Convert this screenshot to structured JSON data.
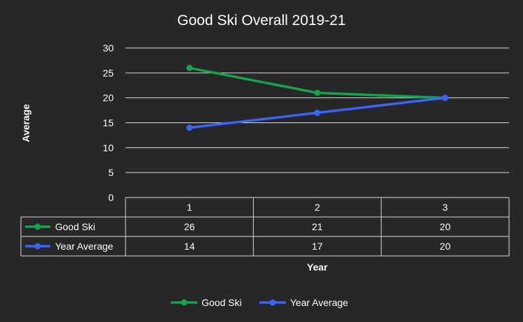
{
  "chart_data": {
    "type": "line",
    "title": "Good Ski Overall 2019-21",
    "xlabel": "Year",
    "ylabel": "Average",
    "categories": [
      "1",
      "2",
      "3"
    ],
    "ylim": [
      0,
      30
    ],
    "yticks": [
      "0",
      "5",
      "10",
      "15",
      "20",
      "25",
      "30"
    ],
    "grid": true,
    "legend_position": "bottom",
    "data_table": true,
    "series": [
      {
        "name": "Good Ski",
        "color": "#12a54b",
        "values": [
          26,
          21,
          20
        ],
        "labels": [
          "26",
          "21",
          "20"
        ]
      },
      {
        "name": "Year Average",
        "color": "#3a63ff",
        "values": [
          14,
          17,
          20
        ],
        "labels": [
          "14",
          "17",
          "20"
        ]
      }
    ]
  }
}
